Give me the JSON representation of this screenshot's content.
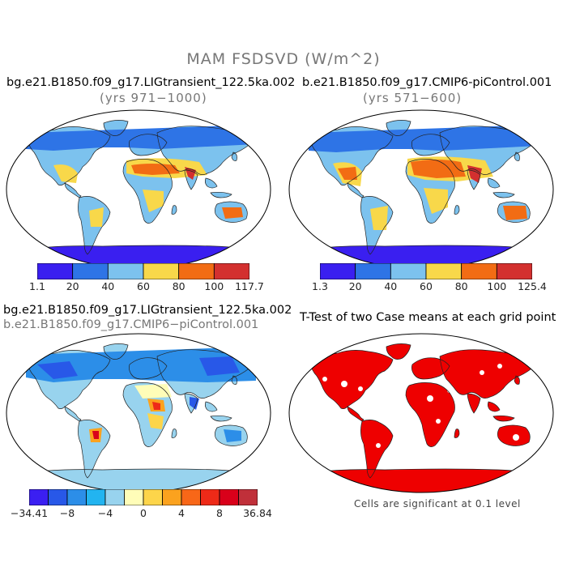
{
  "title": "MAM FSDSVD (W/m^2)",
  "panels": [
    {
      "case": "bg.e21.B1850.f09_g17.LIGtransient_122.5ka.002",
      "years": "(yrs 971−1000)",
      "colorbar": {
        "labels": [
          "1.1",
          "20",
          "40",
          "60",
          "80",
          "100",
          "117.7"
        ],
        "colors": [
          "#3a1ff0",
          "#2e74e6",
          "#7cc2ee",
          "#f8d84a",
          "#f26c14",
          "#d3302f"
        ]
      }
    },
    {
      "case": "b.e21.B1850.f09_g17.CMIP6-piControl.001",
      "years": "(yrs 571−600)",
      "colorbar": {
        "labels": [
          "1.3",
          "20",
          "40",
          "60",
          "80",
          "100",
          "125.4"
        ],
        "colors": [
          "#3a1ff0",
          "#2e74e6",
          "#7cc2ee",
          "#f8d84a",
          "#f26c14",
          "#d3302f"
        ]
      }
    },
    {
      "case": "bg.e21.B1850.f09_g17.LIGtransient_122.5ka.002",
      "case2": "b.e21.B1850.f09_g17.CMIP6−piControl.001",
      "colorbar": {
        "labels": [
          "−34.41",
          "−8",
          "−4",
          "0",
          "4",
          "8",
          "36.84"
        ],
        "colors": [
          "#3b1ff2",
          "#2858e8",
          "#2c8ee8",
          "#22b4f0",
          "#98d3ee",
          "#fffdb8",
          "#fdd54a",
          "#fba21e",
          "#f86718",
          "#ee2a18",
          "#d9001a",
          "#c0303a"
        ]
      }
    },
    {
      "title": "T-Test of two Case means at each grid point",
      "note": "Cells are significant at 0.1 level"
    }
  ]
}
